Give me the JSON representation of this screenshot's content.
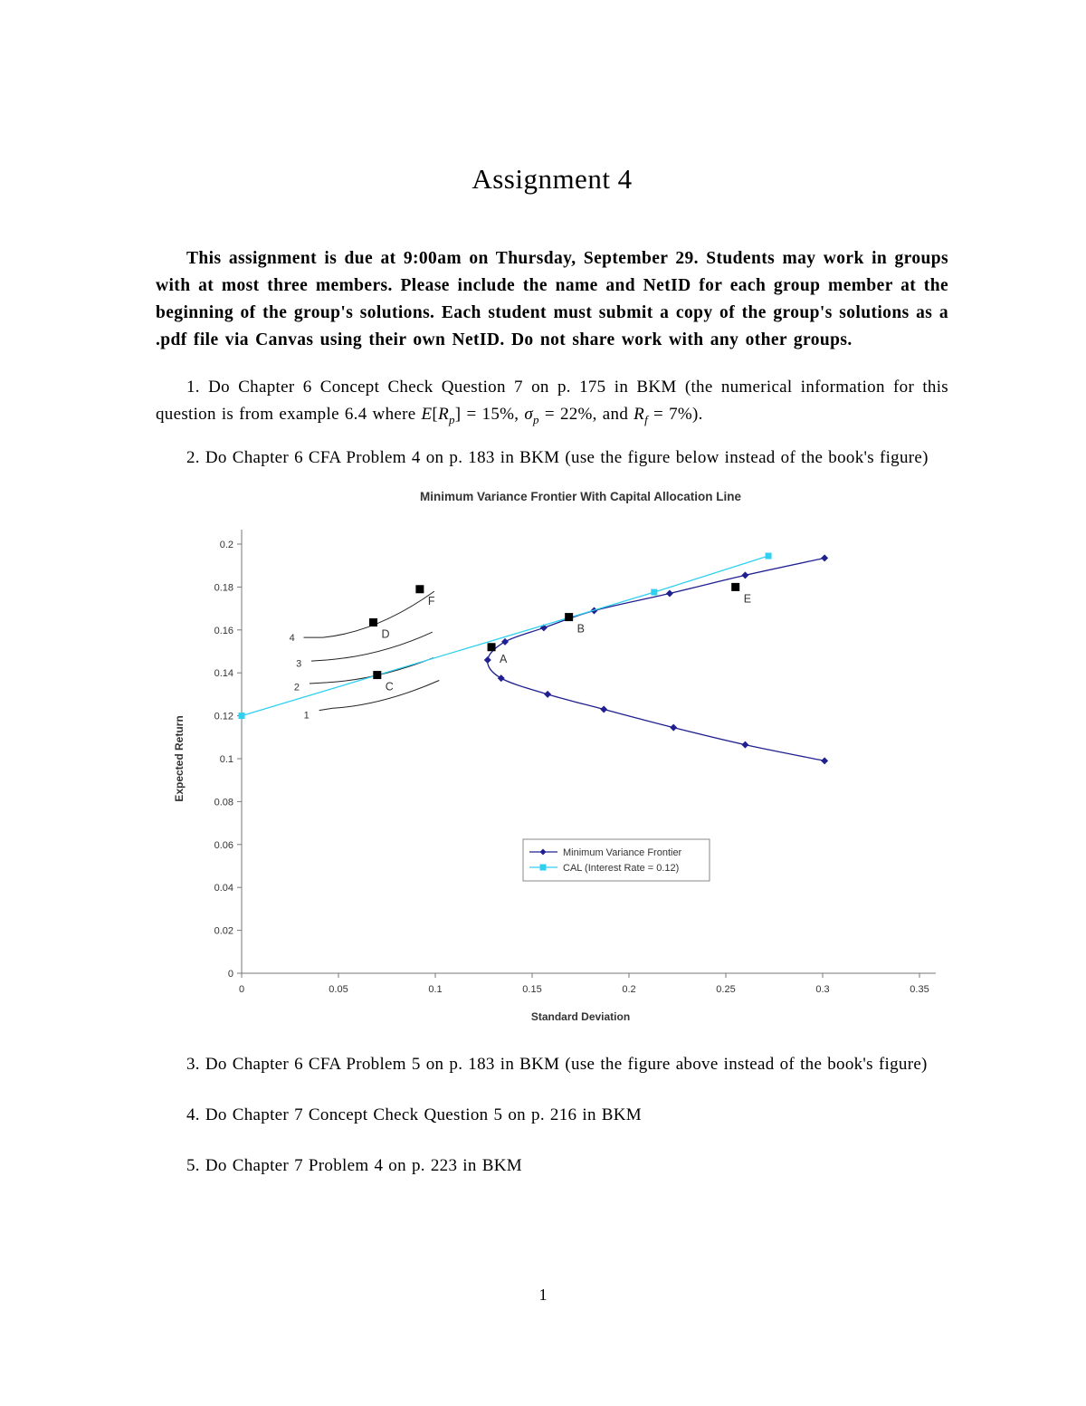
{
  "document": {
    "title": "Assignment 4",
    "intro": "This assignment is due at 9:00am on Thursday, September 29. Students may work in groups with at most three members. Please include the name and NetID for each group member at the beginning of the group's solutions. Each student must submit a copy of the group's solutions as a .pdf file via Canvas using their own NetID. Do not share work with any other groups.",
    "page_number": "1",
    "problems": {
      "p1": {
        "runs": [
          {
            "t": "1. Do Chapter 6 Concept Check Question 7 on p. 175 in BKM (the numerical information for this question is from example 6.4 where "
          },
          {
            "t": "E",
            "i": true
          },
          {
            "t": "["
          },
          {
            "t": "R",
            "i": true
          },
          {
            "t": "p",
            "i": true,
            "sub": true
          },
          {
            "t": "] = 15%, "
          },
          {
            "t": "σ",
            "i": true
          },
          {
            "t": "p",
            "i": true,
            "sub": true
          },
          {
            "t": " = 22%, and "
          },
          {
            "t": "R",
            "i": true
          },
          {
            "t": "f",
            "i": true,
            "sub": true
          },
          {
            "t": " = 7%)."
          }
        ]
      },
      "p2": "2. Do Chapter 6 CFA Problem 4 on p. 183 in BKM (use the figure below instead of the book's figure)",
      "p3": "3. Do Chapter 6 CFA Problem 5 on p. 183 in BKM (use the figure above instead of the book's figure)",
      "p4": "4. Do Chapter 7 Concept Check Question 5 on p. 216 in BKM",
      "p5": "5. Do Chapter 7 Problem 4 on p. 223 in BKM"
    }
  },
  "chart_data": {
    "type": "line",
    "title": "Minimum Variance Frontier With Capital Allocation Line",
    "xlabel": "Standard Deviation",
    "ylabel": "Expected Return",
    "xlim": [
      0,
      0.35
    ],
    "ylim": [
      0,
      0.2
    ],
    "xticks": [
      0,
      0.05,
      0.1,
      0.15,
      0.2,
      0.25,
      0.3,
      0.35
    ],
    "yticks": [
      0,
      0.02,
      0.04,
      0.06,
      0.08,
      0.1,
      0.12,
      0.14,
      0.16,
      0.18,
      0.2
    ],
    "grid": false,
    "legend_position": "inside-lower-center",
    "series": [
      {
        "name": "Minimum Variance Frontier",
        "color": "#202090",
        "marker": "diamond",
        "smooth": true,
        "points": [
          [
            0.301,
            0.099
          ],
          [
            0.26,
            0.1065
          ],
          [
            0.223,
            0.1145
          ],
          [
            0.187,
            0.123
          ],
          [
            0.158,
            0.13
          ],
          [
            0.134,
            0.1375
          ],
          [
            0.127,
            0.146
          ],
          [
            0.136,
            0.1545
          ],
          [
            0.156,
            0.161
          ],
          [
            0.182,
            0.169
          ],
          [
            0.221,
            0.177
          ],
          [
            0.26,
            0.1855
          ],
          [
            0.301,
            0.1935
          ]
        ]
      },
      {
        "name": "CAL (Interest Rate = 0.12)",
        "color": "#2FD0F0",
        "marker": "square",
        "smooth": false,
        "points": [
          [
            0,
            0.12
          ],
          [
            0.213,
            0.1776
          ],
          [
            0.272,
            0.1945
          ]
        ]
      }
    ],
    "marker_color_labeled": "#000000",
    "labeled_points": [
      {
        "label": "A",
        "x": 0.129,
        "y": 0.152
      },
      {
        "label": "B",
        "x": 0.169,
        "y": 0.166
      },
      {
        "label": "C",
        "x": 0.07,
        "y": 0.139
      },
      {
        "label": "D",
        "x": 0.068,
        "y": 0.1635
      },
      {
        "label": "E",
        "x": 0.255,
        "y": 0.18
      },
      {
        "label": "F",
        "x": 0.092,
        "y": 0.179
      }
    ],
    "indifference_curves": [
      {
        "label": "1",
        "label_at": [
          0.0335,
          0.1205
        ],
        "leader": [
          [
            0.04,
            0.1225
          ],
          [
            0.047,
            0.1235
          ]
        ],
        "curve": [
          [
            0.047,
            0.1235
          ],
          [
            0.073,
            0.125
          ],
          [
            0.102,
            0.1365
          ]
        ]
      },
      {
        "label": "2",
        "label_at": [
          0.0285,
          0.1335
        ],
        "leader": [
          [
            0.035,
            0.135
          ],
          [
            0.044,
            0.1355
          ]
        ],
        "curve": [
          [
            0.044,
            0.1355
          ],
          [
            0.07,
            0.1368
          ],
          [
            0.099,
            0.147
          ]
        ]
      },
      {
        "label": "3",
        "label_at": [
          0.0295,
          0.1445
        ],
        "leader": [
          [
            0.036,
            0.1455
          ],
          [
            0.044,
            0.146
          ]
        ],
        "curve": [
          [
            0.044,
            0.146
          ],
          [
            0.072,
            0.148
          ],
          [
            0.0985,
            0.159
          ]
        ]
      },
      {
        "label": "4",
        "label_at": [
          0.026,
          0.1565
        ],
        "leader": [
          [
            0.032,
            0.1565
          ],
          [
            0.042,
            0.1565
          ]
        ],
        "curve": [
          [
            0.042,
            0.1565
          ],
          [
            0.07,
            0.159
          ],
          [
            0.0995,
            0.178
          ]
        ]
      }
    ]
  }
}
